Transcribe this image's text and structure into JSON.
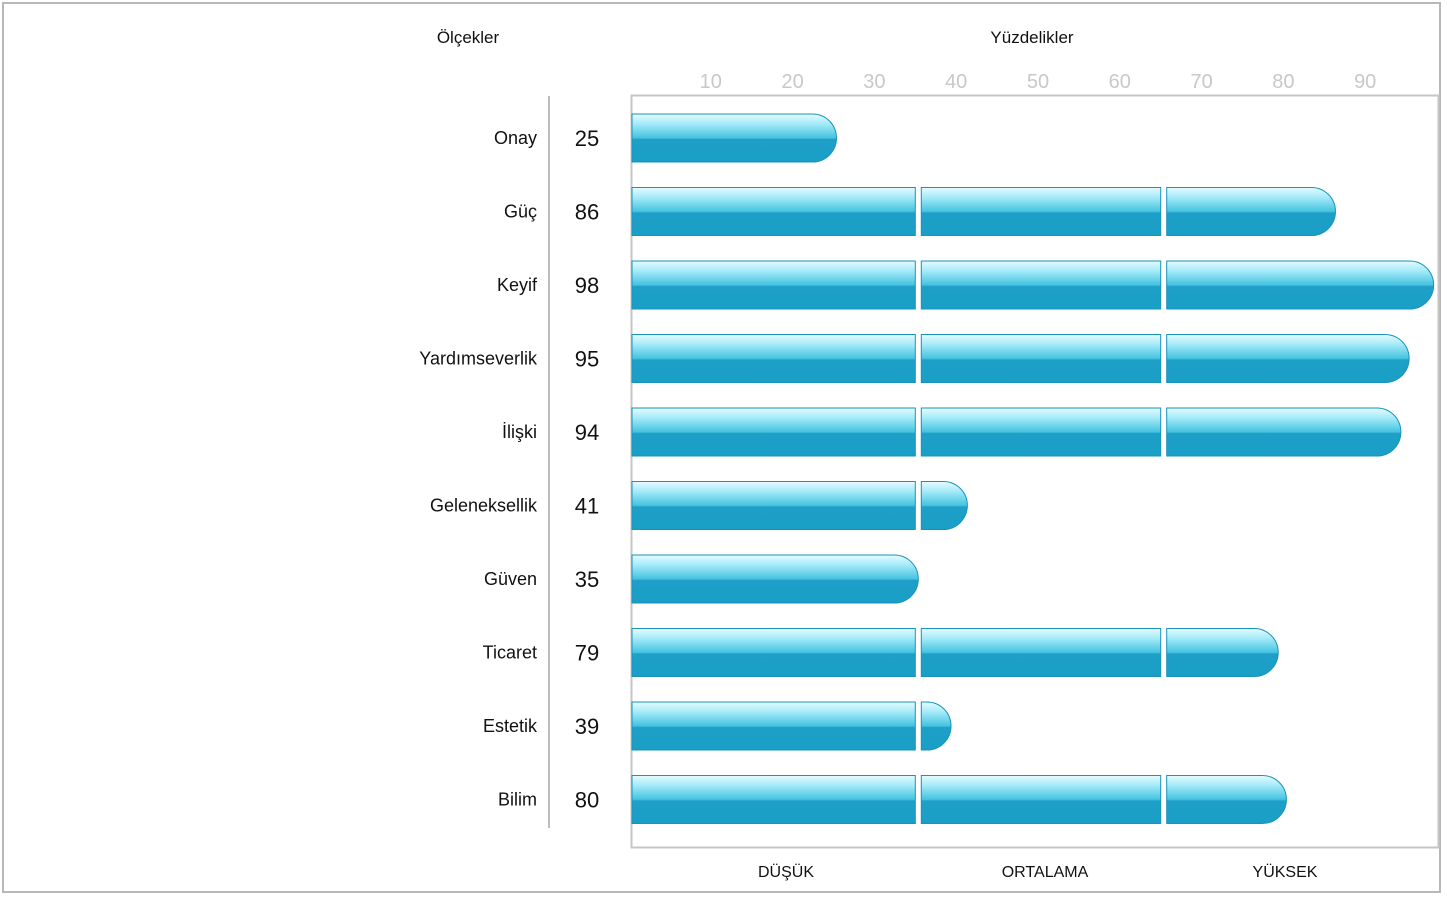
{
  "chart_data": {
    "type": "bar",
    "orientation": "horizontal",
    "row_header": "Ölçekler",
    "axis_title": "Yüzdelikler",
    "xlim": [
      0,
      100
    ],
    "ticks": [
      "10",
      "20",
      "30",
      "40",
      "50",
      "60",
      "70",
      "80",
      "90"
    ],
    "bands": [
      {
        "label": "DÜŞÜK",
        "from": 0,
        "to": 35
      },
      {
        "label": "ORTALAMA",
        "from": 35,
        "to": 65
      },
      {
        "label": "YÜKSEK",
        "from": 65,
        "to": 100
      }
    ],
    "categories": [
      "Onay",
      "Güç",
      "Keyif",
      "Yardımseverlik",
      "İlişki",
      "Geleneksellik",
      "Güven",
      "Ticaret",
      "Estetik",
      "Bilim"
    ],
    "values": [
      25,
      86,
      98,
      95,
      94,
      41,
      35,
      79,
      39,
      80
    ],
    "value_labels": [
      "25",
      "86",
      "98",
      "95",
      "94",
      "41",
      "35",
      "79",
      "39",
      "80"
    ],
    "bar_color_light": "#bff0fb",
    "bar_color_mid": "#4cc6e2",
    "bar_color_dark": "#1a9fc6",
    "plot_border_color": "#c6c6c6",
    "tick_color": "#c8c8c8"
  }
}
